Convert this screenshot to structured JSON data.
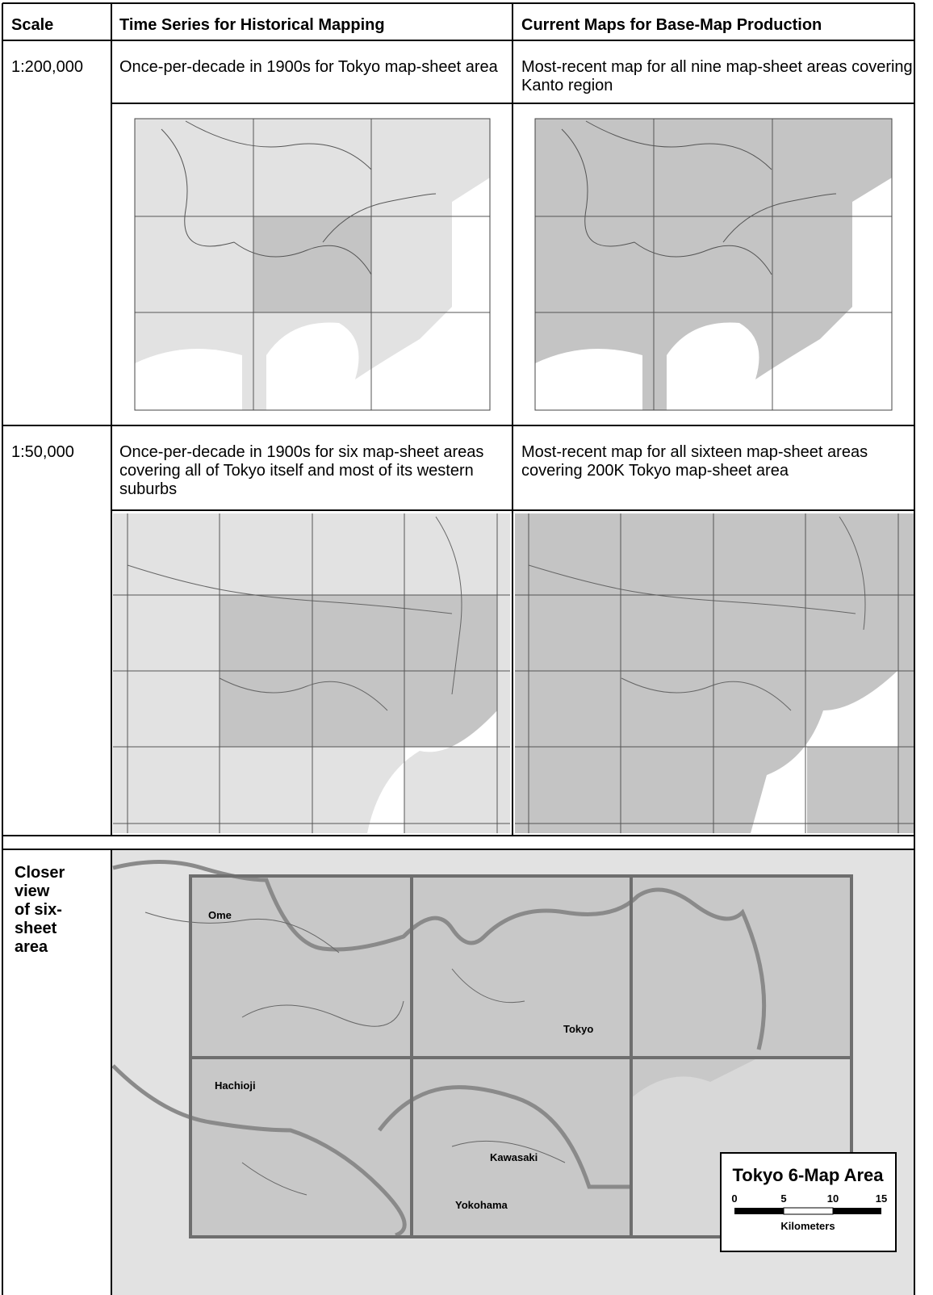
{
  "table": {
    "header": [
      "Scale",
      "Time Series for Historical Mapping",
      "Current Maps for Base-Map Production"
    ],
    "rows": [
      [
        "1:200,000",
        "Once-per-decade in 1900s for Tokyo map-sheet area",
        "Most-recent map for all nine map-sheet areas covering Kanto region"
      ],
      [
        "1:50,000",
        "Once-per-decade in 1900s for six map-sheet areas covering all of Tokyo itself and most of its western suburbs",
        "Most-recent map for all sixteen map-sheet areas covering 200K Tokyo map-sheet area"
      ]
    ]
  },
  "closer_view": {
    "label": "Closer view of six-sheet area",
    "places": [
      "Ome",
      "Tokyo",
      "Hachioji",
      "Kawasaki",
      "Yokohama"
    ],
    "legend": {
      "title": "Tokyo 6-Map Area",
      "scale": [
        0,
        5,
        10,
        15
      ],
      "unit": "Kilometers"
    }
  }
}
